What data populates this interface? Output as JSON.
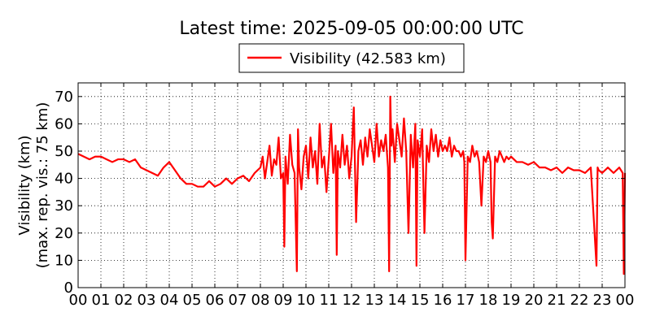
{
  "chart_data": {
    "type": "line",
    "title": "Latest time: 2025-09-05 00:00:00 UTC",
    "ylabel_line1": "Visibility (km)",
    "ylabel_line2": "(max. rep. vis.: 75 km)",
    "xlabel": "",
    "legend": {
      "placement": "top-center",
      "label": "Visibility (42.583 km)"
    },
    "grid": true,
    "xlim": [
      0,
      24
    ],
    "ylim": [
      0,
      75
    ],
    "x_unit": "hour (UTC)",
    "x_ticks": [
      0,
      1,
      2,
      3,
      4,
      5,
      6,
      7,
      8,
      9,
      10,
      11,
      12,
      13,
      14,
      15,
      16,
      17,
      18,
      19,
      20,
      21,
      22,
      23,
      24
    ],
    "x_tick_labels": [
      "00",
      "01",
      "02",
      "03",
      "04",
      "05",
      "06",
      "07",
      "08",
      "09",
      "10",
      "11",
      "12",
      "13",
      "14",
      "15",
      "16",
      "17",
      "18",
      "19",
      "20",
      "21",
      "22",
      "23",
      "00"
    ],
    "y_ticks": [
      0,
      10,
      20,
      30,
      40,
      50,
      60,
      70
    ],
    "y_tick_labels": [
      "0",
      "10",
      "20",
      "30",
      "40",
      "50",
      "60",
      "70"
    ],
    "series": [
      {
        "name": "Visibility (42.583 km)",
        "color": "#ff0000",
        "x": [
          0,
          0.25,
          0.5,
          0.75,
          1,
          1.25,
          1.5,
          1.75,
          2,
          2.25,
          2.5,
          2.75,
          3,
          3.25,
          3.5,
          3.75,
          4,
          4.25,
          4.5,
          4.75,
          5,
          5.25,
          5.5,
          5.75,
          6,
          6.25,
          6.5,
          6.75,
          7,
          7.25,
          7.5,
          7.75,
          8,
          8.1,
          8.2,
          8.3,
          8.4,
          8.5,
          8.6,
          8.7,
          8.8,
          8.9,
          9,
          9.05,
          9.1,
          9.2,
          9.3,
          9.4,
          9.5,
          9.6,
          9.65,
          9.7,
          9.8,
          9.9,
          10,
          10.1,
          10.2,
          10.3,
          10.4,
          10.5,
          10.6,
          10.7,
          10.8,
          10.9,
          11,
          11.1,
          11.2,
          11.3,
          11.35,
          11.4,
          11.5,
          11.6,
          11.7,
          11.8,
          11.9,
          12,
          12.1,
          12.2,
          12.3,
          12.4,
          12.5,
          12.6,
          12.7,
          12.8,
          12.9,
          13,
          13.1,
          13.2,
          13.3,
          13.4,
          13.5,
          13.6,
          13.65,
          13.7,
          13.75,
          13.8,
          13.9,
          14,
          14.1,
          14.2,
          14.3,
          14.4,
          14.5,
          14.6,
          14.7,
          14.8,
          14.85,
          14.9,
          15,
          15.1,
          15.2,
          15.3,
          15.4,
          15.5,
          15.6,
          15.7,
          15.8,
          15.9,
          16,
          16.1,
          16.2,
          16.3,
          16.4,
          16.5,
          16.6,
          16.7,
          16.8,
          16.9,
          16.95,
          17,
          17.1,
          17.2,
          17.3,
          17.4,
          17.5,
          17.6,
          17.7,
          17.8,
          17.9,
          18,
          18.1,
          18.15,
          18.2,
          18.3,
          18.4,
          18.5,
          18.6,
          18.7,
          18.8,
          18.9,
          19,
          19.25,
          19.5,
          19.75,
          20,
          20.25,
          20.5,
          20.75,
          21,
          21.25,
          21.5,
          21.75,
          22,
          22.25,
          22.5,
          22.75,
          22.8,
          22.85,
          23,
          23.25,
          23.5,
          23.75,
          23.9,
          23.95,
          24
        ],
        "values": [
          49,
          48,
          47,
          48,
          48,
          47,
          46,
          47,
          47,
          46,
          47,
          44,
          43,
          42,
          41,
          44,
          46,
          43,
          40,
          38,
          38,
          37,
          37,
          39,
          37,
          38,
          40,
          38,
          40,
          41,
          39,
          42,
          44,
          48,
          40,
          46,
          52,
          41,
          47,
          45,
          55,
          40,
          42,
          15,
          48,
          38,
          56,
          45,
          42,
          6,
          58,
          44,
          36,
          48,
          52,
          40,
          55,
          44,
          50,
          38,
          60,
          44,
          48,
          35,
          47,
          60,
          42,
          52,
          12,
          50,
          44,
          56,
          45,
          52,
          40,
          48,
          66,
          24,
          50,
          54,
          45,
          55,
          48,
          58,
          52,
          46,
          60,
          48,
          54,
          50,
          56,
          44,
          6,
          70,
          52,
          58,
          46,
          60,
          54,
          48,
          62,
          50,
          20,
          56,
          44,
          60,
          8,
          54,
          48,
          58,
          20,
          52,
          46,
          58,
          50,
          56,
          48,
          54,
          50,
          52,
          50,
          55,
          48,
          52,
          50,
          50,
          48,
          50,
          46,
          10,
          48,
          46,
          52,
          48,
          50,
          46,
          30,
          48,
          46,
          50,
          46,
          24,
          18,
          48,
          46,
          50,
          48,
          46,
          48,
          47,
          48,
          46,
          46,
          45,
          46,
          44,
          44,
          43,
          44,
          42,
          44,
          43,
          43,
          42,
          44,
          8,
          44,
          43,
          42,
          44,
          42,
          44,
          42,
          5,
          42
        ]
      }
    ]
  }
}
